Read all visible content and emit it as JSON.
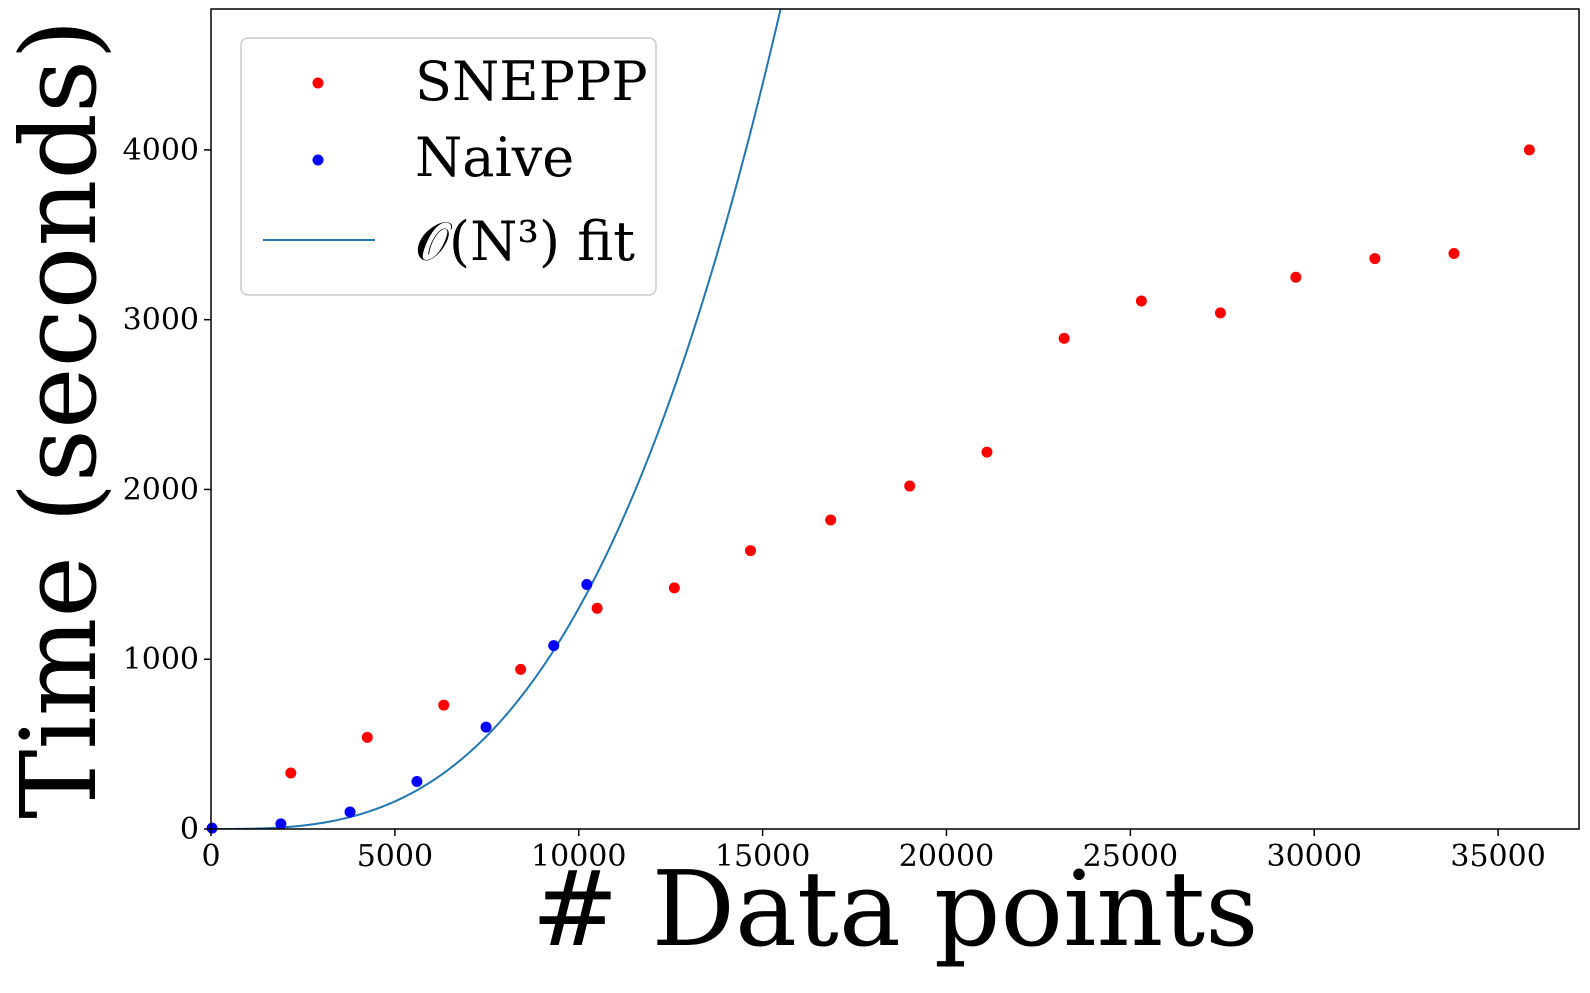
{
  "chart_data": {
    "type": "scatter",
    "title": "",
    "xlabel": "# Data points",
    "ylabel": "Time (seconds)",
    "xlim": [
      0,
      37200
    ],
    "ylim": [
      0,
      4830
    ],
    "grid": false,
    "legend_position": "top-left",
    "x_ticks": [
      {
        "value": 0,
        "label": "0"
      },
      {
        "value": 5000,
        "label": "5000"
      },
      {
        "value": 10000,
        "label": "10000"
      },
      {
        "value": 15000,
        "label": "15000"
      },
      {
        "value": 20000,
        "label": "20000"
      },
      {
        "value": 25000,
        "label": "25000"
      },
      {
        "value": 30000,
        "label": "30000"
      },
      {
        "value": 35000,
        "label": "35000"
      }
    ],
    "y_ticks": [
      {
        "value": 0,
        "label": "0"
      },
      {
        "value": 1000,
        "label": "1000"
      },
      {
        "value": 2000,
        "label": "2000"
      },
      {
        "value": 3000,
        "label": "3000"
      },
      {
        "value": 4000,
        "label": "4000"
      }
    ],
    "series": [
      {
        "name": "SNEPPP",
        "kind": "scatter",
        "color": "#ff0000",
        "x": [
          2170,
          4250,
          6330,
          8420,
          10500,
          12600,
          14670,
          16850,
          19000,
          21100,
          23200,
          25300,
          27450,
          29500,
          31650,
          33800,
          35850
        ],
        "y": [
          330,
          540,
          730,
          940,
          1300,
          1420,
          1640,
          1820,
          2020,
          2220,
          2890,
          3110,
          3040,
          3250,
          3360,
          3390,
          4000
        ]
      },
      {
        "name": "Naive",
        "kind": "scatter",
        "color": "#0000ff",
        "x": [
          30,
          1900,
          3780,
          5600,
          7480,
          9320,
          10220
        ],
        "y": [
          5,
          30,
          100,
          280,
          600,
          1080,
          1440
        ]
      },
      {
        "name": "𝒪(N³) fit",
        "kind": "line",
        "color": "#1f77b4",
        "formula": "y = 1.3e-9 * x^3",
        "coefficient": 1.3e-09
      }
    ]
  }
}
